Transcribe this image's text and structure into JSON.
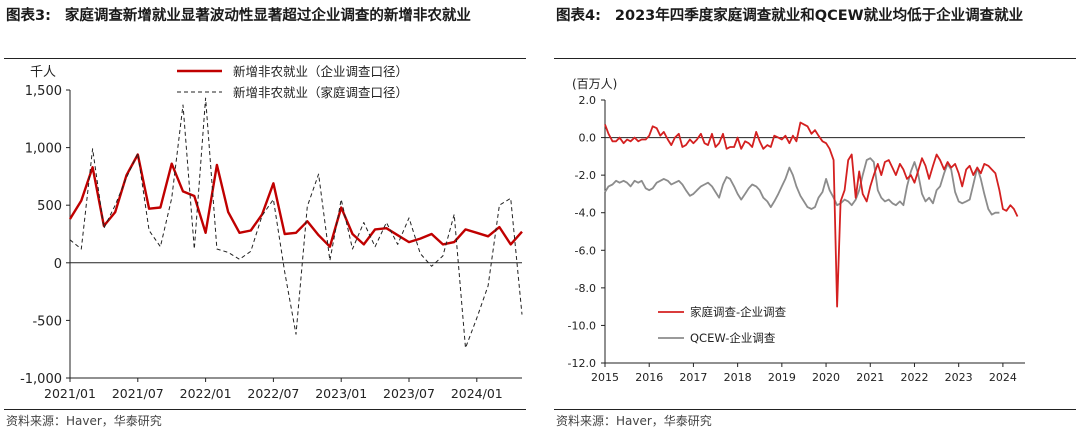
{
  "charts": [
    {
      "figure_label": "图表3:",
      "title": "家庭调查新增就业显著波动性显著超过企业调查的新增非农就业",
      "source": "资料来源：Haver，华泰研究",
      "unit_label": "千人"
    },
    {
      "figure_label": "图表4:",
      "title": "2023年四季度家庭调查就业和QCEW就业均低于企业调查就业",
      "source": "资料来源：Haver，华泰研究",
      "unit_label": "(百万人)"
    }
  ],
  "chart_data": [
    {
      "type": "line",
      "ylabel": "千人",
      "ylim": [
        -1000,
        1500
      ],
      "yticks": [
        -1000,
        -500,
        0,
        500,
        1000,
        1500
      ],
      "ytick_labels": [
        "-1,000",
        "-500",
        "0",
        "500",
        "1,000",
        "1,500"
      ],
      "xlim": [
        "2021/01",
        "2024/05"
      ],
      "xtick_labels": [
        "2021/01",
        "2021/07",
        "2022/01",
        "2022/07",
        "2023/01",
        "2023/07",
        "2024/01"
      ],
      "legend_position": "top-right",
      "x": [
        "2021/01",
        "2021/02",
        "2021/03",
        "2021/04",
        "2021/05",
        "2021/06",
        "2021/07",
        "2021/08",
        "2021/09",
        "2021/10",
        "2021/11",
        "2021/12",
        "2022/01",
        "2022/02",
        "2022/03",
        "2022/04",
        "2022/05",
        "2022/06",
        "2022/07",
        "2022/08",
        "2022/09",
        "2022/10",
        "2022/11",
        "2022/12",
        "2023/01",
        "2023/02",
        "2023/03",
        "2023/04",
        "2023/05",
        "2023/06",
        "2023/07",
        "2023/08",
        "2023/09",
        "2023/10",
        "2023/11",
        "2023/12",
        "2024/01",
        "2024/02",
        "2024/03",
        "2024/04",
        "2024/05"
      ],
      "series": [
        {
          "name": "新增非农就业（企业调查口径）",
          "color": "#c00000",
          "style": "solid",
          "values": [
            380,
            540,
            830,
            320,
            440,
            760,
            940,
            470,
            480,
            860,
            620,
            580,
            260,
            850,
            440,
            260,
            280,
            420,
            690,
            250,
            260,
            360,
            240,
            140,
            480,
            250,
            160,
            290,
            300,
            240,
            180,
            210,
            250,
            160,
            180,
            290,
            260,
            230,
            310,
            160,
            270
          ]
        },
        {
          "name": "新增非农就业（家庭调查口径）",
          "color": "#222222",
          "style": "dashed",
          "values": [
            200,
            120,
            990,
            300,
            500,
            740,
            950,
            280,
            140,
            560,
            1370,
            120,
            1430,
            120,
            90,
            30,
            100,
            410,
            550,
            -80,
            -620,
            490,
            770,
            20,
            550,
            120,
            350,
            140,
            350,
            160,
            390,
            80,
            -30,
            60,
            420,
            -740,
            -480,
            -200,
            500,
            560,
            -450
          ]
        }
      ]
    },
    {
      "type": "line",
      "ylabel": "(百万人)",
      "ylim": [
        -12,
        2
      ],
      "yticks": [
        2,
        0,
        -2,
        -4,
        -6,
        -8,
        -10,
        -12
      ],
      "ytick_labels": [
        "2.0",
        "0.0",
        "-2.0",
        "-4.0",
        "-6.0",
        "-8.0",
        "-10.0",
        "-12.0"
      ],
      "xlim": [
        2015,
        2024.5
      ],
      "xtick_labels": [
        "2015",
        "2016",
        "2017",
        "2018",
        "2019",
        "2020",
        "2021",
        "2022",
        "2023",
        "2024"
      ],
      "legend_position": "bottom-left",
      "series": [
        {
          "name": "家庭调查-企业调查",
          "color": "#d42020",
          "style": "solid",
          "x": [
            2015.0,
            2015.08,
            2015.17,
            2015.25,
            2015.33,
            2015.42,
            2015.5,
            2015.58,
            2015.67,
            2015.75,
            2015.83,
            2015.92,
            2016.0,
            2016.08,
            2016.17,
            2016.25,
            2016.33,
            2016.42,
            2016.5,
            2016.58,
            2016.67,
            2016.75,
            2016.83,
            2016.92,
            2017.0,
            2017.08,
            2017.17,
            2017.25,
            2017.33,
            2017.42,
            2017.5,
            2017.58,
            2017.67,
            2017.75,
            2017.83,
            2017.92,
            2018.0,
            2018.08,
            2018.17,
            2018.25,
            2018.33,
            2018.42,
            2018.5,
            2018.58,
            2018.67,
            2018.75,
            2018.83,
            2018.92,
            2019.0,
            2019.08,
            2019.17,
            2019.25,
            2019.33,
            2019.42,
            2019.5,
            2019.58,
            2019.67,
            2019.75,
            2019.83,
            2019.92,
            2020.0,
            2020.08,
            2020.17,
            2020.25,
            2020.33,
            2020.42,
            2020.5,
            2020.58,
            2020.67,
            2020.75,
            2020.83,
            2020.92,
            2021.0,
            2021.08,
            2021.17,
            2021.25,
            2021.33,
            2021.42,
            2021.5,
            2021.58,
            2021.67,
            2021.75,
            2021.83,
            2021.92,
            2022.0,
            2022.08,
            2022.17,
            2022.25,
            2022.33,
            2022.42,
            2022.5,
            2022.58,
            2022.67,
            2022.75,
            2022.83,
            2022.92,
            2023.0,
            2023.08,
            2023.17,
            2023.25,
            2023.33,
            2023.42,
            2023.5,
            2023.58,
            2023.67,
            2023.75,
            2023.83,
            2023.92,
            2024.0,
            2024.08,
            2024.17,
            2024.25,
            2024.33
          ],
          "values": [
            0.7,
            0.2,
            -0.2,
            -0.2,
            0.0,
            -0.3,
            -0.1,
            -0.2,
            0.0,
            -0.2,
            -0.1,
            -0.1,
            0.1,
            0.6,
            0.5,
            0.1,
            0.3,
            -0.1,
            -0.4,
            0.0,
            0.2,
            -0.5,
            -0.4,
            -0.1,
            -0.3,
            -0.1,
            0.2,
            -0.3,
            -0.4,
            0.2,
            -0.5,
            -0.3,
            0.2,
            -0.6,
            -0.5,
            -0.5,
            0.0,
            -0.6,
            -0.2,
            -0.3,
            -0.5,
            0.3,
            -0.2,
            -0.6,
            -0.4,
            -0.5,
            0.1,
            0.0,
            -0.1,
            0.1,
            -0.3,
            0.1,
            -0.2,
            0.8,
            0.7,
            0.6,
            0.2,
            0.4,
            0.1,
            -0.2,
            -0.3,
            -0.6,
            -1.2,
            -9.0,
            -3.4,
            -2.8,
            -1.2,
            -0.9,
            -3.2,
            -1.8,
            -3.0,
            -3.4,
            -2.6,
            -2.0,
            -1.4,
            -2.0,
            -1.3,
            -1.2,
            -1.6,
            -2.0,
            -1.4,
            -1.7,
            -2.2,
            -2.0,
            -2.4,
            -1.8,
            -1.1,
            -1.5,
            -2.2,
            -1.5,
            -0.9,
            -1.2,
            -1.7,
            -1.3,
            -1.6,
            -1.4,
            -1.9,
            -2.6,
            -1.7,
            -1.5,
            -2.0,
            -1.6,
            -1.9,
            -1.4,
            -1.5,
            -1.7,
            -1.9,
            -2.8,
            -3.8,
            -3.9,
            -3.6,
            -3.8,
            -4.2
          ]
        },
        {
          "name": "QCEW-企业调查",
          "color": "#8c8c8c",
          "style": "solid",
          "x": [
            2015.0,
            2015.08,
            2015.17,
            2015.25,
            2015.33,
            2015.42,
            2015.5,
            2015.58,
            2015.67,
            2015.75,
            2015.83,
            2015.92,
            2016.0,
            2016.08,
            2016.17,
            2016.25,
            2016.33,
            2016.42,
            2016.5,
            2016.58,
            2016.67,
            2016.75,
            2016.83,
            2016.92,
            2017.0,
            2017.08,
            2017.17,
            2017.25,
            2017.33,
            2017.42,
            2017.5,
            2017.58,
            2017.67,
            2017.75,
            2017.83,
            2017.92,
            2018.0,
            2018.08,
            2018.17,
            2018.25,
            2018.33,
            2018.42,
            2018.5,
            2018.58,
            2018.67,
            2018.75,
            2018.83,
            2018.92,
            2019.0,
            2019.08,
            2019.17,
            2019.25,
            2019.33,
            2019.42,
            2019.5,
            2019.58,
            2019.67,
            2019.75,
            2019.83,
            2019.92,
            2020.0,
            2020.08,
            2020.17,
            2020.25,
            2020.33,
            2020.42,
            2020.5,
            2020.58,
            2020.67,
            2020.75,
            2020.83,
            2020.92,
            2021.0,
            2021.08,
            2021.17,
            2021.25,
            2021.33,
            2021.42,
            2021.5,
            2021.58,
            2021.67,
            2021.75,
            2021.83,
            2021.92,
            2022.0,
            2022.08,
            2022.17,
            2022.25,
            2022.33,
            2022.42,
            2022.5,
            2022.58,
            2022.67,
            2022.75,
            2022.83,
            2022.92,
            2023.0,
            2023.08,
            2023.17,
            2023.25,
            2023.33,
            2023.42,
            2023.5,
            2023.58,
            2023.67,
            2023.75,
            2023.83,
            2023.92
          ],
          "values": [
            -2.9,
            -2.6,
            -2.5,
            -2.3,
            -2.4,
            -2.3,
            -2.4,
            -2.6,
            -2.3,
            -2.4,
            -2.3,
            -2.7,
            -2.8,
            -2.7,
            -2.4,
            -2.3,
            -2.2,
            -2.3,
            -2.5,
            -2.4,
            -2.3,
            -2.5,
            -2.8,
            -3.1,
            -3.0,
            -2.8,
            -2.6,
            -2.5,
            -2.4,
            -2.6,
            -2.9,
            -3.2,
            -2.5,
            -2.1,
            -2.2,
            -2.6,
            -3.0,
            -3.3,
            -3.0,
            -2.7,
            -2.5,
            -2.6,
            -2.8,
            -3.2,
            -3.4,
            -3.7,
            -3.4,
            -3.0,
            -2.6,
            -2.2,
            -1.6,
            -2.0,
            -2.6,
            -3.1,
            -3.4,
            -3.7,
            -3.8,
            -3.7,
            -3.2,
            -2.9,
            -2.2,
            -2.8,
            -3.2,
            -3.6,
            -3.5,
            -3.3,
            -3.4,
            -3.6,
            -3.3,
            -2.8,
            -2.0,
            -1.2,
            -1.1,
            -1.3,
            -2.8,
            -3.2,
            -3.4,
            -3.3,
            -3.5,
            -3.6,
            -3.4,
            -3.6,
            -2.6,
            -1.8,
            -1.3,
            -1.9,
            -3.0,
            -3.4,
            -3.2,
            -3.5,
            -2.8,
            -2.6,
            -1.9,
            -1.4,
            -1.7,
            -2.9,
            -3.4,
            -3.5,
            -3.4,
            -3.3,
            -2.5,
            -1.6,
            -2.2,
            -3.0,
            -3.8,
            -4.1,
            -4.0,
            -4.0
          ]
        }
      ]
    }
  ]
}
